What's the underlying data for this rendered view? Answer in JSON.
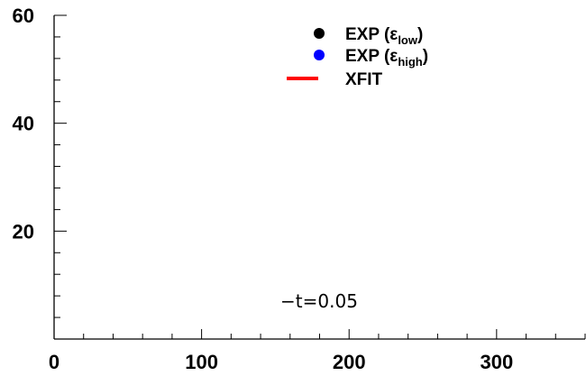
{
  "chart_data": {
    "type": "scatter",
    "title": "",
    "xlabel": "",
    "ylabel": "",
    "xlim": [
      0,
      360
    ],
    "ylim": [
      0,
      60
    ],
    "x_ticks": [
      0,
      100,
      200,
      300
    ],
    "x_tick_labels": [
      "0",
      "100",
      "200",
      "300"
    ],
    "y_ticks": [
      20,
      40,
      60
    ],
    "y_tick_labels": [
      "20",
      "40",
      "60"
    ],
    "grid": false,
    "legend_position": "top-right",
    "series": [
      {
        "name": "EXP",
        "subscript": "low",
        "label_prefix": "EXP (ε",
        "label_suffix": ")",
        "type": "points",
        "color": "#000000",
        "points": []
      },
      {
        "name": "EXP",
        "subscript": "high",
        "label_prefix": "EXP (ε",
        "label_suffix": ")",
        "type": "points",
        "color": "#0000ff",
        "points": []
      },
      {
        "name": "XFIT",
        "label_prefix": "XFIT",
        "label_suffix": "",
        "type": "line",
        "color": "#ff0000",
        "points": []
      }
    ],
    "annotations": [
      {
        "text": "−t=0.05",
        "x": 180,
        "y": 6.5
      }
    ]
  }
}
